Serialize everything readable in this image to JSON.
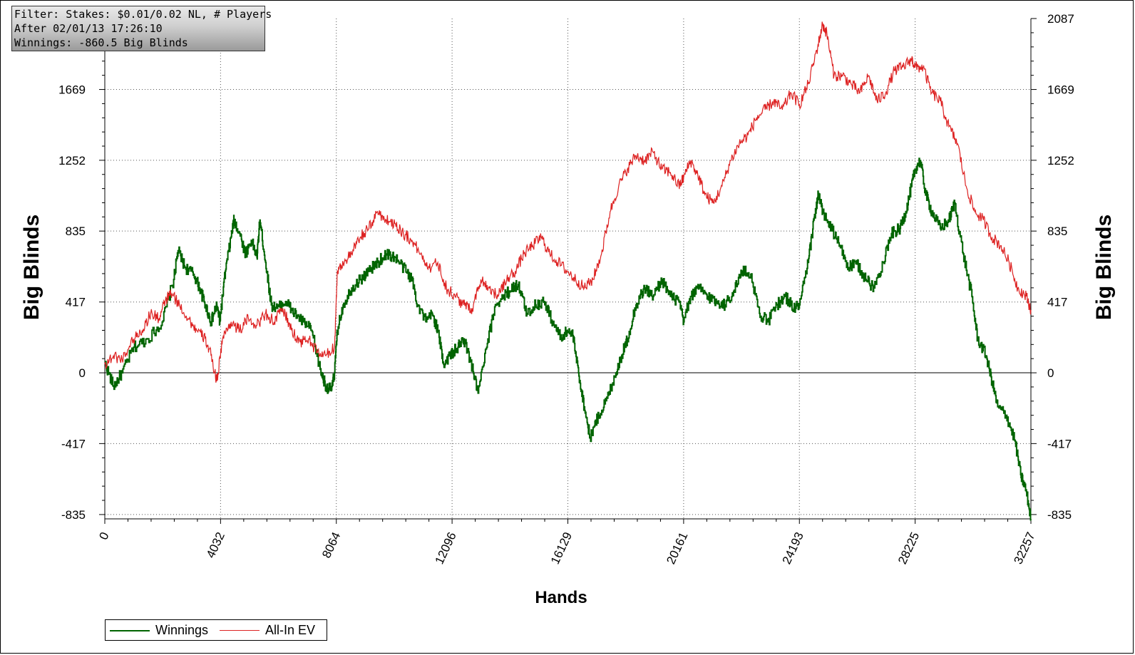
{
  "filter": {
    "line1": "Filter: Stakes: $0.01/0.02 NL, # Players",
    "line2": "After 02/01/13 17:26:10",
    "line3": "Winnings: -860.5 Big Blinds"
  },
  "chart_data": {
    "type": "line",
    "xlabel": "Hands",
    "ylabel_left": "Big Blinds",
    "ylabel_right": "Big Blinds",
    "xlim": [
      0,
      32257
    ],
    "ylim": [
      -860.5,
      2087
    ],
    "x_ticks": [
      0,
      4032,
      8064,
      12096,
      16129,
      20161,
      24193,
      28225,
      32257
    ],
    "y_ticks": [
      -835,
      -417,
      0,
      417,
      835,
      1252,
      1669,
      2087
    ],
    "grid": true,
    "legend_position": "bottom-left",
    "series": [
      {
        "name": "Winnings",
        "color": "#006400",
        "points": [
          [
            0,
            60
          ],
          [
            300,
            -80
          ],
          [
            600,
            0
          ],
          [
            1000,
            150
          ],
          [
            1500,
            200
          ],
          [
            2000,
            300
          ],
          [
            2400,
            550
          ],
          [
            2550,
            720
          ],
          [
            2800,
            620
          ],
          [
            3100,
            580
          ],
          [
            3300,
            500
          ],
          [
            3500,
            400
          ],
          [
            3700,
            300
          ],
          [
            3900,
            400
          ],
          [
            4000,
            300
          ],
          [
            4200,
            600
          ],
          [
            4400,
            800
          ],
          [
            4500,
            900
          ],
          [
            4700,
            820
          ],
          [
            4900,
            700
          ],
          [
            5100,
            780
          ],
          [
            5300,
            680
          ],
          [
            5400,
            900
          ],
          [
            5600,
            650
          ],
          [
            5800,
            400
          ],
          [
            6000,
            380
          ],
          [
            6300,
            420
          ],
          [
            6600,
            350
          ],
          [
            6900,
            300
          ],
          [
            7200,
            250
          ],
          [
            7500,
            20
          ],
          [
            7700,
            -80
          ],
          [
            7900,
            -100
          ],
          [
            8000,
            0
          ],
          [
            8100,
            250
          ],
          [
            8300,
            400
          ],
          [
            8600,
            500
          ],
          [
            8900,
            550
          ],
          [
            9200,
            600
          ],
          [
            9500,
            650
          ],
          [
            9800,
            700
          ],
          [
            10100,
            680
          ],
          [
            10400,
            620
          ],
          [
            10700,
            550
          ],
          [
            10900,
            400
          ],
          [
            11200,
            300
          ],
          [
            11400,
            350
          ],
          [
            11600,
            250
          ],
          [
            11800,
            50
          ],
          [
            12000,
            100
          ],
          [
            12300,
            150
          ],
          [
            12500,
            200
          ],
          [
            12800,
            30
          ],
          [
            13000,
            -120
          ],
          [
            13300,
            150
          ],
          [
            13600,
            400
          ],
          [
            13900,
            450
          ],
          [
            14200,
            500
          ],
          [
            14400,
            520
          ],
          [
            14700,
            350
          ],
          [
            15000,
            400
          ],
          [
            15300,
            420
          ],
          [
            15600,
            300
          ],
          [
            15900,
            200
          ],
          [
            16100,
            250
          ],
          [
            16300,
            220
          ],
          [
            16500,
            0
          ],
          [
            16700,
            -200
          ],
          [
            16900,
            -380
          ],
          [
            17200,
            -250
          ],
          [
            17500,
            -150
          ],
          [
            17800,
            0
          ],
          [
            18000,
            100
          ],
          [
            18200,
            200
          ],
          [
            18500,
            400
          ],
          [
            18800,
            500
          ],
          [
            19100,
            450
          ],
          [
            19400,
            550
          ],
          [
            19700,
            450
          ],
          [
            20000,
            420
          ],
          [
            20161,
            300
          ],
          [
            20400,
            450
          ],
          [
            20700,
            500
          ],
          [
            21000,
            450
          ],
          [
            21300,
            420
          ],
          [
            21600,
            400
          ],
          [
            21900,
            480
          ],
          [
            22200,
            600
          ],
          [
            22500,
            580
          ],
          [
            22800,
            350
          ],
          [
            23100,
            300
          ],
          [
            23400,
            400
          ],
          [
            23700,
            450
          ],
          [
            24000,
            380
          ],
          [
            24193,
            400
          ],
          [
            24500,
            650
          ],
          [
            24700,
            900
          ],
          [
            24850,
            1050
          ],
          [
            25000,
            950
          ],
          [
            25300,
            850
          ],
          [
            25600,
            750
          ],
          [
            25900,
            620
          ],
          [
            26200,
            640
          ],
          [
            26500,
            550
          ],
          [
            26800,
            500
          ],
          [
            27100,
            650
          ],
          [
            27400,
            820
          ],
          [
            27700,
            850
          ],
          [
            27900,
            950
          ],
          [
            28100,
            1100
          ],
          [
            28225,
            1200
          ],
          [
            28400,
            1250
          ],
          [
            28600,
            1050
          ],
          [
            28800,
            950
          ],
          [
            29100,
            850
          ],
          [
            29400,
            900
          ],
          [
            29600,
            1000
          ],
          [
            29900,
            700
          ],
          [
            30200,
            450
          ],
          [
            30400,
            200
          ],
          [
            30700,
            100
          ],
          [
            30900,
            -50
          ],
          [
            31100,
            -200
          ],
          [
            31400,
            -250
          ],
          [
            31700,
            -400
          ],
          [
            31900,
            -600
          ],
          [
            32100,
            -700
          ],
          [
            32257,
            -860.5
          ]
        ]
      },
      {
        "name": "All-In EV",
        "color": "#dd2222",
        "points": [
          [
            0,
            50
          ],
          [
            300,
            100
          ],
          [
            600,
            80
          ],
          [
            1000,
            200
          ],
          [
            1300,
            250
          ],
          [
            1600,
            350
          ],
          [
            1900,
            320
          ],
          [
            2100,
            420
          ],
          [
            2300,
            470
          ],
          [
            2600,
            400
          ],
          [
            2900,
            320
          ],
          [
            3200,
            250
          ],
          [
            3500,
            200
          ],
          [
            3700,
            100
          ],
          [
            3900,
            -50
          ],
          [
            4100,
            200
          ],
          [
            4400,
            300
          ],
          [
            4700,
            250
          ],
          [
            5000,
            320
          ],
          [
            5300,
            280
          ],
          [
            5600,
            350
          ],
          [
            5900,
            300
          ],
          [
            6200,
            380
          ],
          [
            6500,
            250
          ],
          [
            6800,
            180
          ],
          [
            7100,
            200
          ],
          [
            7400,
            120
          ],
          [
            7700,
            100
          ],
          [
            8000,
            150
          ],
          [
            8100,
            600
          ],
          [
            8300,
            650
          ],
          [
            8600,
            700
          ],
          [
            8900,
            800
          ],
          [
            9200,
            850
          ],
          [
            9500,
            950
          ],
          [
            9800,
            900
          ],
          [
            10100,
            880
          ],
          [
            10400,
            820
          ],
          [
            10700,
            780
          ],
          [
            11000,
            700
          ],
          [
            11300,
            620
          ],
          [
            11600,
            650
          ],
          [
            11900,
            500
          ],
          [
            12200,
            450
          ],
          [
            12500,
            400
          ],
          [
            12800,
            380
          ],
          [
            13100,
            550
          ],
          [
            13400,
            500
          ],
          [
            13700,
            450
          ],
          [
            14000,
            550
          ],
          [
            14300,
            600
          ],
          [
            14600,
            700
          ],
          [
            14900,
            750
          ],
          [
            15200,
            800
          ],
          [
            15500,
            700
          ],
          [
            15800,
            650
          ],
          [
            16100,
            600
          ],
          [
            16400,
            550
          ],
          [
            16700,
            500
          ],
          [
            17000,
            550
          ],
          [
            17300,
            700
          ],
          [
            17600,
            950
          ],
          [
            17900,
            1100
          ],
          [
            18200,
            1200
          ],
          [
            18500,
            1280
          ],
          [
            18800,
            1250
          ],
          [
            19100,
            1300
          ],
          [
            19400,
            1200
          ],
          [
            19700,
            1180
          ],
          [
            20000,
            1100
          ],
          [
            20161,
            1150
          ],
          [
            20400,
            1250
          ],
          [
            20700,
            1150
          ],
          [
            20900,
            1050
          ],
          [
            21200,
            1000
          ],
          [
            21500,
            1100
          ],
          [
            21800,
            1250
          ],
          [
            22100,
            1350
          ],
          [
            22400,
            1400
          ],
          [
            22700,
            1500
          ],
          [
            23000,
            1550
          ],
          [
            23300,
            1600
          ],
          [
            23600,
            1550
          ],
          [
            23900,
            1650
          ],
          [
            24193,
            1580
          ],
          [
            24500,
            1700
          ],
          [
            24800,
            1900
          ],
          [
            25000,
            2050
          ],
          [
            25150,
            2000
          ],
          [
            25400,
            1750
          ],
          [
            25700,
            1750
          ],
          [
            26000,
            1700
          ],
          [
            26300,
            1650
          ],
          [
            26600,
            1750
          ],
          [
            26900,
            1600
          ],
          [
            27200,
            1650
          ],
          [
            27500,
            1780
          ],
          [
            27800,
            1800
          ],
          [
            28100,
            1850
          ],
          [
            28225,
            1800
          ],
          [
            28500,
            1800
          ],
          [
            28800,
            1650
          ],
          [
            29100,
            1600
          ],
          [
            29400,
            1450
          ],
          [
            29700,
            1350
          ],
          [
            30000,
            1100
          ],
          [
            30300,
            950
          ],
          [
            30600,
            900
          ],
          [
            30900,
            800
          ],
          [
            31200,
            750
          ],
          [
            31500,
            650
          ],
          [
            31800,
            500
          ],
          [
            32100,
            450
          ],
          [
            32257,
            370
          ]
        ]
      }
    ]
  },
  "legend": {
    "items": [
      {
        "label": "Winnings",
        "color": "#006400"
      },
      {
        "label": "All-In EV",
        "color": "#dd2222"
      }
    ]
  }
}
